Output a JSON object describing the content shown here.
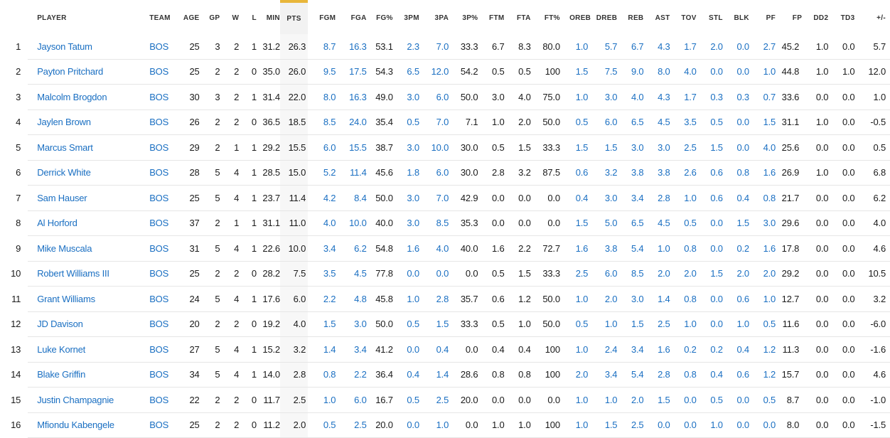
{
  "columns": [
    {
      "key": "rank",
      "label": ""
    },
    {
      "key": "player",
      "label": "PLAYER"
    },
    {
      "key": "team",
      "label": "TEAM"
    },
    {
      "key": "age",
      "label": "AGE"
    },
    {
      "key": "gp",
      "label": "GP"
    },
    {
      "key": "w",
      "label": "W"
    },
    {
      "key": "l",
      "label": "L"
    },
    {
      "key": "min",
      "label": "MIN"
    },
    {
      "key": "pts",
      "label": "PTS"
    },
    {
      "key": "fgm",
      "label": "FGM"
    },
    {
      "key": "fga",
      "label": "FGA"
    },
    {
      "key": "fgp",
      "label": "FG%"
    },
    {
      "key": "3pm",
      "label": "3PM"
    },
    {
      "key": "3pa",
      "label": "3PA"
    },
    {
      "key": "3pp",
      "label": "3P%"
    },
    {
      "key": "ftm",
      "label": "FTM"
    },
    {
      "key": "fta",
      "label": "FTA"
    },
    {
      "key": "ftp",
      "label": "FT%"
    },
    {
      "key": "oreb",
      "label": "OREB"
    },
    {
      "key": "dreb",
      "label": "DREB"
    },
    {
      "key": "reb",
      "label": "REB"
    },
    {
      "key": "ast",
      "label": "AST"
    },
    {
      "key": "tov",
      "label": "TOV"
    },
    {
      "key": "stl",
      "label": "STL"
    },
    {
      "key": "blk",
      "label": "BLK"
    },
    {
      "key": "pf",
      "label": "PF"
    },
    {
      "key": "fp",
      "label": "FP"
    },
    {
      "key": "dd2",
      "label": "DD2"
    },
    {
      "key": "td3",
      "label": "TD3"
    },
    {
      "key": "pm",
      "label": "+/-"
    }
  ],
  "sorted_column": "pts",
  "accent_color": "#e8b63a",
  "link_color": "#1a6fc2",
  "rows": [
    [
      "1",
      "Jayson Tatum",
      "BOS",
      "25",
      "3",
      "2",
      "1",
      "31.2",
      "26.3",
      "8.7",
      "16.3",
      "53.1",
      "2.3",
      "7.0",
      "33.3",
      "6.7",
      "8.3",
      "80.0",
      "1.0",
      "5.7",
      "6.7",
      "4.3",
      "1.7",
      "2.0",
      "0.0",
      "2.7",
      "45.2",
      "1.0",
      "0.0",
      "5.7"
    ],
    [
      "2",
      "Payton Pritchard",
      "BOS",
      "25",
      "2",
      "2",
      "0",
      "35.0",
      "26.0",
      "9.5",
      "17.5",
      "54.3",
      "6.5",
      "12.0",
      "54.2",
      "0.5",
      "0.5",
      "100",
      "1.5",
      "7.5",
      "9.0",
      "8.0",
      "4.0",
      "0.0",
      "0.0",
      "1.0",
      "44.8",
      "1.0",
      "1.0",
      "12.0"
    ],
    [
      "3",
      "Malcolm Brogdon",
      "BOS",
      "30",
      "3",
      "2",
      "1",
      "31.4",
      "22.0",
      "8.0",
      "16.3",
      "49.0",
      "3.0",
      "6.0",
      "50.0",
      "3.0",
      "4.0",
      "75.0",
      "1.0",
      "3.0",
      "4.0",
      "4.3",
      "1.7",
      "0.3",
      "0.3",
      "0.7",
      "33.6",
      "0.0",
      "0.0",
      "1.0"
    ],
    [
      "4",
      "Jaylen Brown",
      "BOS",
      "26",
      "2",
      "2",
      "0",
      "36.5",
      "18.5",
      "8.5",
      "24.0",
      "35.4",
      "0.5",
      "7.0",
      "7.1",
      "1.0",
      "2.0",
      "50.0",
      "0.5",
      "6.0",
      "6.5",
      "4.5",
      "3.5",
      "0.5",
      "0.0",
      "1.5",
      "31.1",
      "1.0",
      "0.0",
      "-0.5"
    ],
    [
      "5",
      "Marcus Smart",
      "BOS",
      "29",
      "2",
      "1",
      "1",
      "29.2",
      "15.5",
      "6.0",
      "15.5",
      "38.7",
      "3.0",
      "10.0",
      "30.0",
      "0.5",
      "1.5",
      "33.3",
      "1.5",
      "1.5",
      "3.0",
      "3.0",
      "2.5",
      "1.5",
      "0.0",
      "4.0",
      "25.6",
      "0.0",
      "0.0",
      "0.5"
    ],
    [
      "6",
      "Derrick White",
      "BOS",
      "28",
      "5",
      "4",
      "1",
      "28.5",
      "15.0",
      "5.2",
      "11.4",
      "45.6",
      "1.8",
      "6.0",
      "30.0",
      "2.8",
      "3.2",
      "87.5",
      "0.6",
      "3.2",
      "3.8",
      "3.8",
      "2.6",
      "0.6",
      "0.8",
      "1.6",
      "26.9",
      "1.0",
      "0.0",
      "6.8"
    ],
    [
      "7",
      "Sam Hauser",
      "BOS",
      "25",
      "5",
      "4",
      "1",
      "23.7",
      "11.4",
      "4.2",
      "8.4",
      "50.0",
      "3.0",
      "7.0",
      "42.9",
      "0.0",
      "0.0",
      "0.0",
      "0.4",
      "3.0",
      "3.4",
      "2.8",
      "1.0",
      "0.6",
      "0.4",
      "0.8",
      "21.7",
      "0.0",
      "0.0",
      "6.2"
    ],
    [
      "8",
      "Al Horford",
      "BOS",
      "37",
      "2",
      "1",
      "1",
      "31.1",
      "11.0",
      "4.0",
      "10.0",
      "40.0",
      "3.0",
      "8.5",
      "35.3",
      "0.0",
      "0.0",
      "0.0",
      "1.5",
      "5.0",
      "6.5",
      "4.5",
      "0.5",
      "0.0",
      "1.5",
      "3.0",
      "29.6",
      "0.0",
      "0.0",
      "4.0"
    ],
    [
      "9",
      "Mike Muscala",
      "BOS",
      "31",
      "5",
      "4",
      "1",
      "22.6",
      "10.0",
      "3.4",
      "6.2",
      "54.8",
      "1.6",
      "4.0",
      "40.0",
      "1.6",
      "2.2",
      "72.7",
      "1.6",
      "3.8",
      "5.4",
      "1.0",
      "0.8",
      "0.0",
      "0.2",
      "1.6",
      "17.8",
      "0.0",
      "0.0",
      "4.6"
    ],
    [
      "10",
      "Robert Williams III",
      "BOS",
      "25",
      "2",
      "2",
      "0",
      "28.2",
      "7.5",
      "3.5",
      "4.5",
      "77.8",
      "0.0",
      "0.0",
      "0.0",
      "0.5",
      "1.5",
      "33.3",
      "2.5",
      "6.0",
      "8.5",
      "2.0",
      "2.0",
      "1.5",
      "2.0",
      "2.0",
      "29.2",
      "0.0",
      "0.0",
      "10.5"
    ],
    [
      "11",
      "Grant Williams",
      "BOS",
      "24",
      "5",
      "4",
      "1",
      "17.6",
      "6.0",
      "2.2",
      "4.8",
      "45.8",
      "1.0",
      "2.8",
      "35.7",
      "0.6",
      "1.2",
      "50.0",
      "1.0",
      "2.0",
      "3.0",
      "1.4",
      "0.8",
      "0.0",
      "0.6",
      "1.0",
      "12.7",
      "0.0",
      "0.0",
      "3.2"
    ],
    [
      "12",
      "JD Davison",
      "BOS",
      "20",
      "2",
      "2",
      "0",
      "19.2",
      "4.0",
      "1.5",
      "3.0",
      "50.0",
      "0.5",
      "1.5",
      "33.3",
      "0.5",
      "1.0",
      "50.0",
      "0.5",
      "1.0",
      "1.5",
      "2.5",
      "1.0",
      "0.0",
      "1.0",
      "0.5",
      "11.6",
      "0.0",
      "0.0",
      "-6.0"
    ],
    [
      "13",
      "Luke Kornet",
      "BOS",
      "27",
      "5",
      "4",
      "1",
      "15.2",
      "3.2",
      "1.4",
      "3.4",
      "41.2",
      "0.0",
      "0.4",
      "0.0",
      "0.4",
      "0.4",
      "100",
      "1.0",
      "2.4",
      "3.4",
      "1.6",
      "0.2",
      "0.2",
      "0.4",
      "1.2",
      "11.3",
      "0.0",
      "0.0",
      "-1.6"
    ],
    [
      "14",
      "Blake Griffin",
      "BOS",
      "34",
      "5",
      "4",
      "1",
      "14.0",
      "2.8",
      "0.8",
      "2.2",
      "36.4",
      "0.4",
      "1.4",
      "28.6",
      "0.8",
      "0.8",
      "100",
      "2.0",
      "3.4",
      "5.4",
      "2.8",
      "0.8",
      "0.4",
      "0.6",
      "1.2",
      "15.7",
      "0.0",
      "0.0",
      "4.6"
    ],
    [
      "15",
      "Justin Champagnie",
      "BOS",
      "22",
      "2",
      "2",
      "0",
      "11.7",
      "2.5",
      "1.0",
      "6.0",
      "16.7",
      "0.5",
      "2.5",
      "20.0",
      "0.0",
      "0.0",
      "0.0",
      "1.0",
      "1.0",
      "2.0",
      "1.5",
      "0.0",
      "0.5",
      "0.0",
      "0.5",
      "8.7",
      "0.0",
      "0.0",
      "-1.0"
    ],
    [
      "16",
      "Mfiondu Kabengele",
      "BOS",
      "25",
      "2",
      "2",
      "0",
      "11.2",
      "2.0",
      "0.5",
      "2.5",
      "20.0",
      "0.0",
      "1.0",
      "0.0",
      "1.0",
      "1.0",
      "100",
      "1.0",
      "1.5",
      "2.5",
      "0.0",
      "0.0",
      "1.0",
      "0.0",
      "0.0",
      "8.0",
      "0.0",
      "0.0",
      "-1.5"
    ]
  ]
}
